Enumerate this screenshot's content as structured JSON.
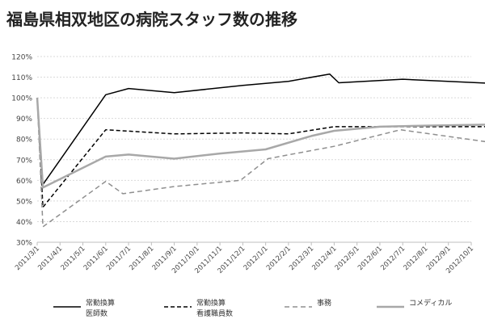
{
  "chart_data": {
    "type": "line",
    "title": "福島県相双地区の病院スタッフ数の推移",
    "xlabel": "",
    "ylabel": "",
    "ylim": [
      30,
      120
    ],
    "y_ticks": [
      "30%",
      "40%",
      "50%",
      "60%",
      "70%",
      "80%",
      "90%",
      "100%",
      "110%",
      "120%"
    ],
    "grid": true,
    "legend_position": "bottom",
    "categories": [
      "2011/3/1",
      "2011/4/1",
      "2011/5/1",
      "2011/6/1",
      "2011/7/1",
      "2011/8/1",
      "2011/9/1",
      "2011/10/1",
      "2011/11/1",
      "2011/12/1",
      "2012/1/1",
      "2012/2/1",
      "2012/3/1",
      "2012/4/1",
      "2012/5/1",
      "2012/6/1",
      "2012/7/1",
      "2012/8/1",
      "2012/9/1",
      "2012/10/1"
    ],
    "series": [
      {
        "name": "常勤換算\n医師数",
        "color": "#000000",
        "dash": "",
        "width": 1.5,
        "x": [
          0,
          0.25,
          3,
          4,
          6,
          9,
          11,
          12.8,
          13.2,
          16,
          19.8
        ],
        "values": [
          100,
          58,
          101.5,
          104.5,
          102.5,
          106,
          108,
          111.5,
          107.3,
          109,
          107
        ]
      },
      {
        "name": "常勤換算\n看護職員数",
        "color": "#000000",
        "dash": "5,3",
        "width": 1.5,
        "x": [
          0,
          0.25,
          3,
          6,
          9,
          11,
          13,
          15,
          19.8
        ],
        "values": [
          100,
          47,
          84.5,
          82.5,
          83,
          82.5,
          86,
          86,
          86
        ]
      },
      {
        "name": "事務",
        "color": "#8f8f8f",
        "dash": "6,4",
        "width": 1.5,
        "x": [
          0,
          0.25,
          3,
          3.75,
          6,
          8.9,
          10.1,
          13,
          15.9,
          19.8
        ],
        "values": [
          100,
          37.5,
          59.5,
          53.5,
          57,
          60,
          70.5,
          76.5,
          84.5,
          78.5
        ]
      },
      {
        "name": "コメディカル",
        "color": "#a8a8a8",
        "dash": "",
        "width": 2.5,
        "x": [
          0,
          0.25,
          3,
          4,
          6,
          8,
          10,
          12,
          13,
          15,
          17,
          19.8
        ],
        "values": [
          100,
          56.5,
          71.5,
          72.5,
          70.5,
          73,
          75,
          81.5,
          84,
          86,
          86.5,
          87
        ]
      }
    ]
  }
}
